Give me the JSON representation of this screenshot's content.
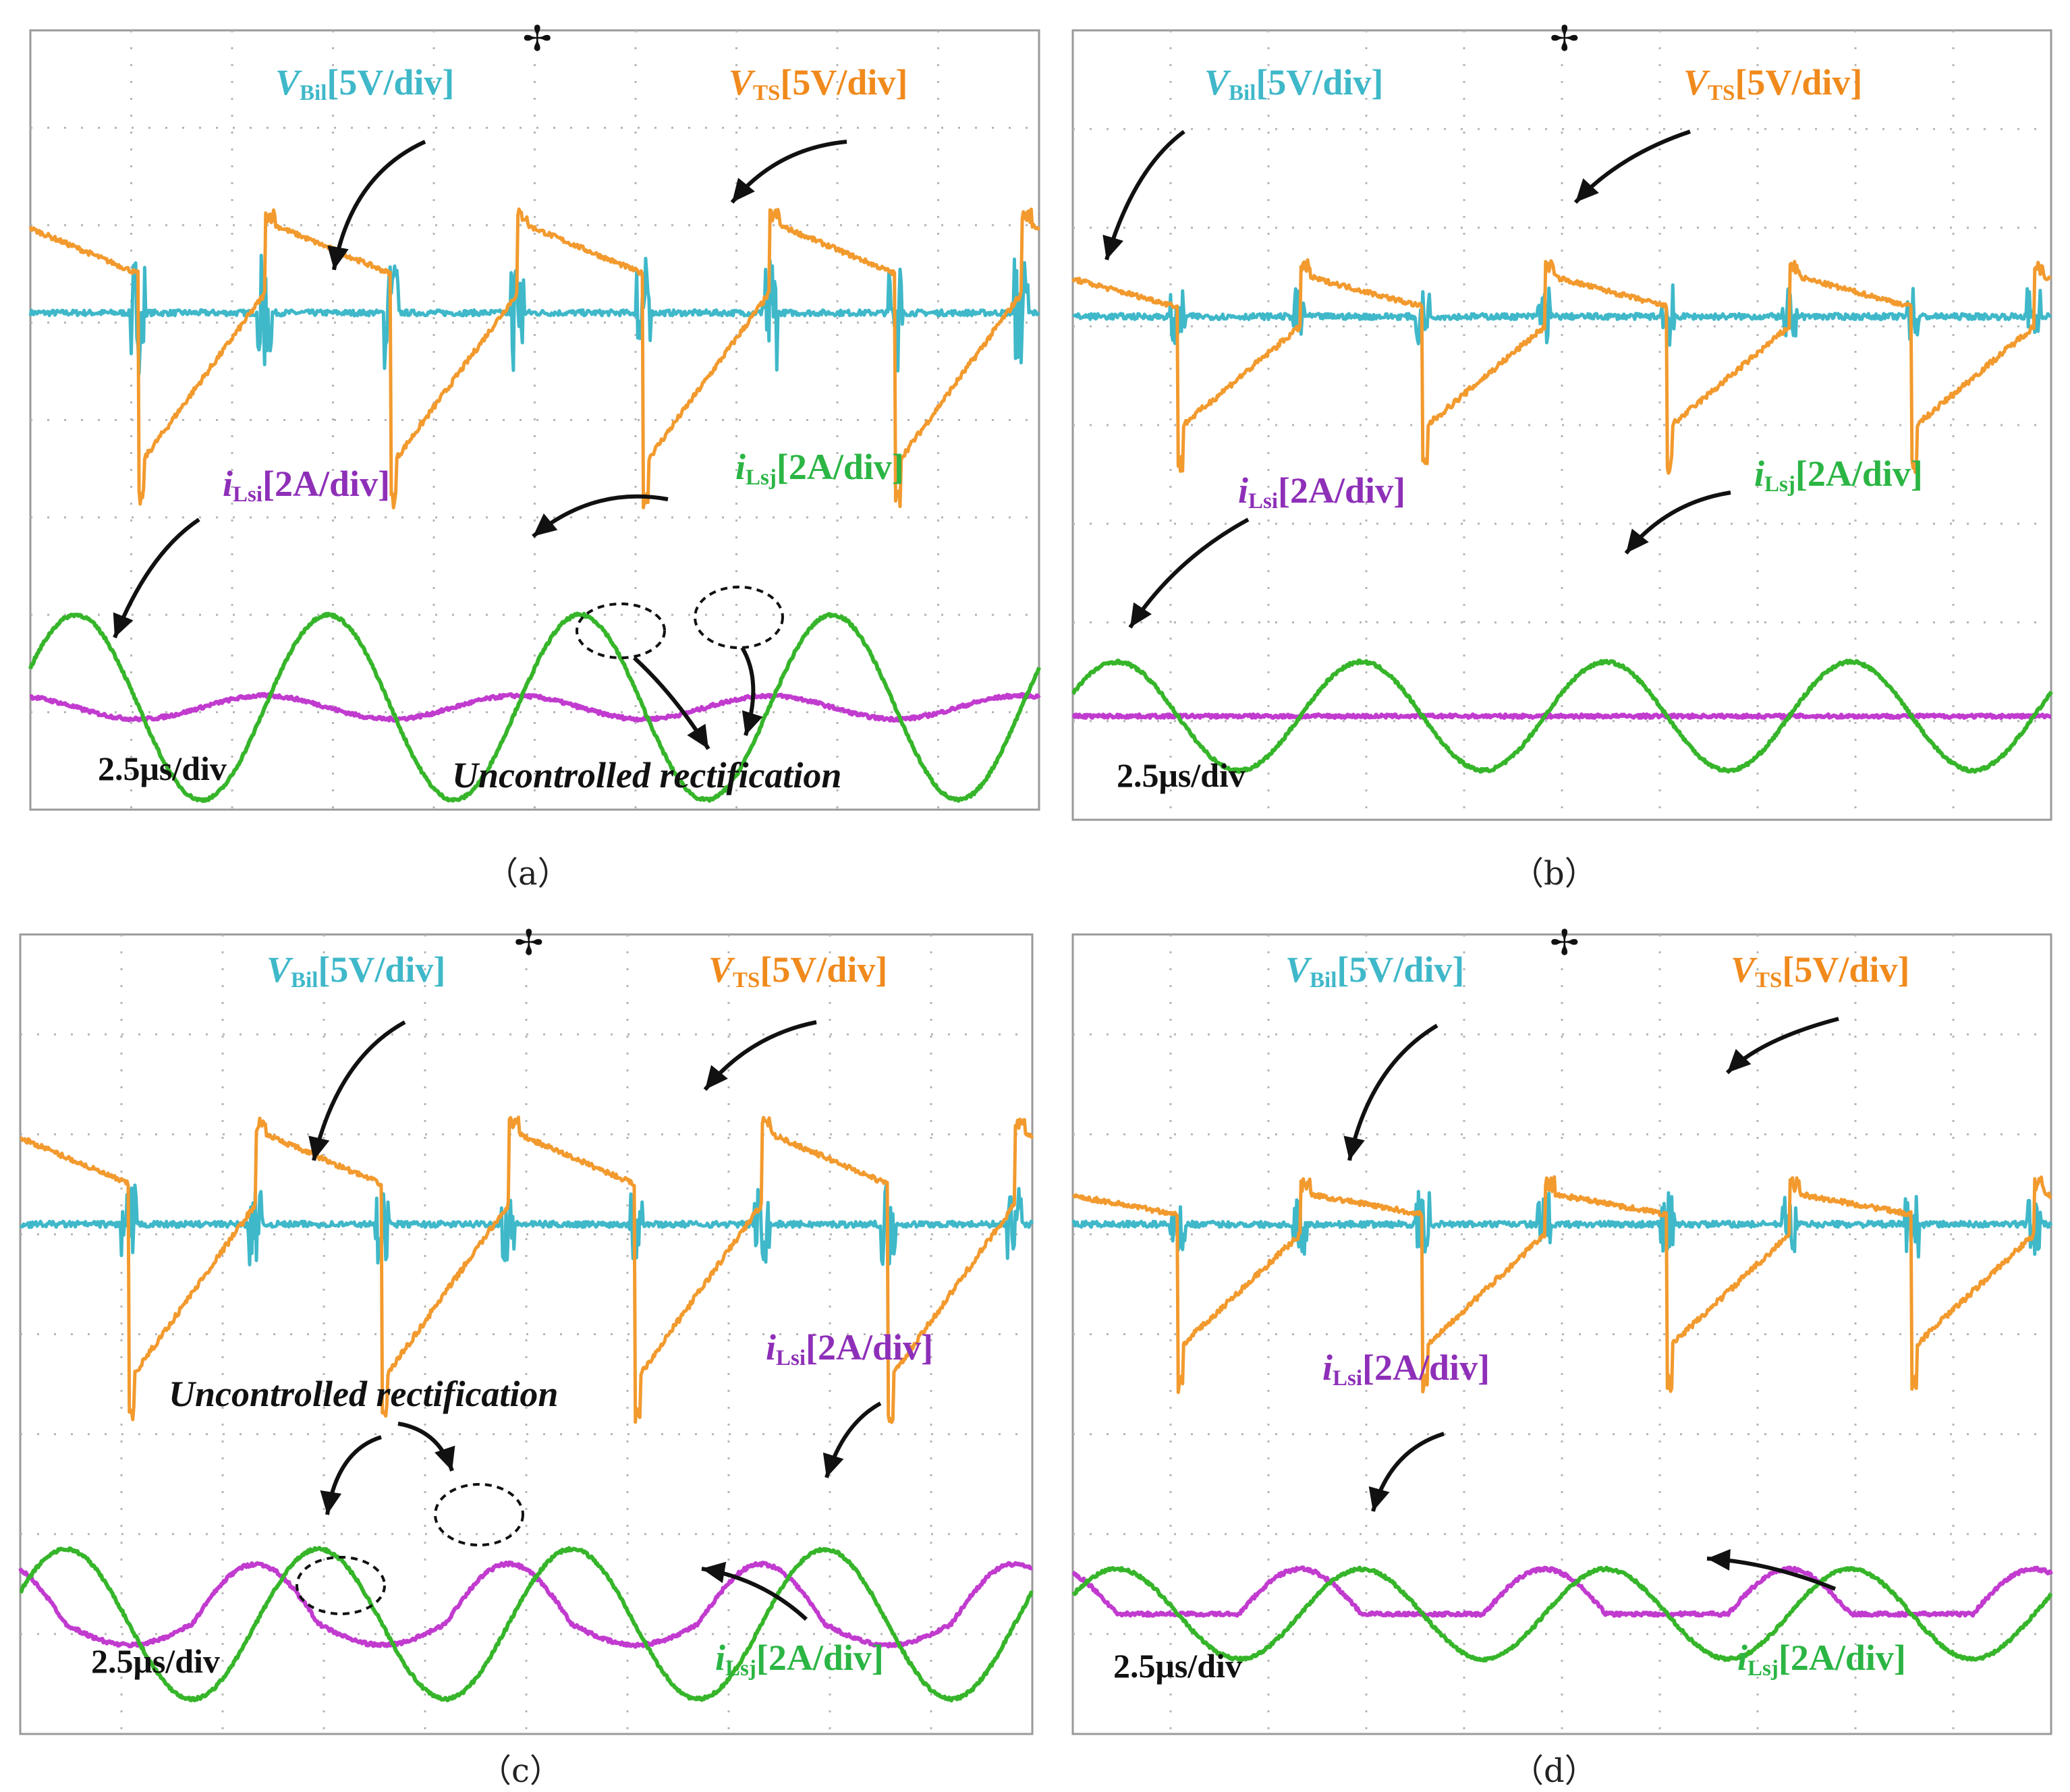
{
  "figure": {
    "panels": [
      {
        "id": "a",
        "caption": "（a）",
        "timebase": "2.5μs/div",
        "annotation": "Uncontrolled rectification",
        "labels": {
          "vbil": {
            "main": "V",
            "sub": "Bil",
            "scale": "[5V/div]"
          },
          "vts": {
            "main": "V",
            "sub": "TS",
            "scale": "[5V/div]"
          },
          "ilsi": {
            "main": "i",
            "sub": "Lsi",
            "scale": "[2A/div]"
          },
          "ilsj": {
            "main": "i",
            "sub": "Lsj",
            "scale": "[2A/div]"
          }
        }
      },
      {
        "id": "b",
        "caption": "（b）",
        "timebase": "2.5μs/div",
        "labels": {
          "vbil": {
            "main": "V",
            "sub": "Bil",
            "scale": "[5V/div]"
          },
          "vts": {
            "main": "V",
            "sub": "TS",
            "scale": "[5V/div]"
          },
          "ilsi": {
            "main": "i",
            "sub": "Lsi",
            "scale": "[2A/div]"
          },
          "ilsj": {
            "main": "i",
            "sub": "Lsj",
            "scale": "[2A/div]"
          }
        }
      },
      {
        "id": "c",
        "caption": "（c）",
        "timebase": "2.5μs/div",
        "annotation": "Uncontrolled rectification",
        "labels": {
          "vbil": {
            "main": "V",
            "sub": "Bil",
            "scale": "[5V/div]"
          },
          "vts": {
            "main": "V",
            "sub": "TS",
            "scale": "[5V/div]"
          },
          "ilsi": {
            "main": "i",
            "sub": "Lsi",
            "scale": "[2A/div]"
          },
          "ilsj": {
            "main": "i",
            "sub": "Lsj",
            "scale": "[2A/div]"
          }
        }
      },
      {
        "id": "d",
        "caption": "（d）",
        "timebase": "2.5μs/div",
        "labels": {
          "vbil": {
            "main": "V",
            "sub": "Bil",
            "scale": "[5V/div]"
          },
          "vts": {
            "main": "V",
            "sub": "TS",
            "scale": "[5V/div]"
          },
          "ilsi": {
            "main": "i",
            "sub": "Lsi",
            "scale": "[2A/div]"
          },
          "ilsj": {
            "main": "i",
            "sub": "Lsj",
            "scale": "[2A/div]"
          }
        }
      }
    ],
    "colors": {
      "vbil": "#3fb8c9",
      "vts": "#f29a2e",
      "ilsi": "#c13bcf",
      "ilsj": "#36b52a",
      "grid": "#b5b5b5"
    }
  },
  "chart_data": [
    {
      "type": "line",
      "panel": "a",
      "title": "",
      "xlabel": "2.5μs/div",
      "x_divisions": 10,
      "y_divisions": 8,
      "grid": true,
      "series": [
        {
          "name": "VBil",
          "unit": "V",
          "scale_per_div": 5,
          "shape": "flat trace with switching ringing",
          "level_div": 5.1,
          "spike_div": 0.6
        },
        {
          "name": "VTS",
          "unit": "V",
          "scale_per_div": 5,
          "shape": "sawtooth",
          "periods": 4,
          "high_div": 6.0,
          "low_div": 3.6,
          "step_high_div": 5.3
        },
        {
          "name": "iLsi",
          "unit": "A",
          "scale_per_div": 2,
          "shape": "small sinusoid (uncontrolled rectification)",
          "periods": 4,
          "amplitude_div": 0.12,
          "baseline_div": 1.05
        },
        {
          "name": "iLsj",
          "unit": "A",
          "scale_per_div": 2,
          "shape": "sinusoid",
          "periods": 4,
          "amplitude_div": 0.95,
          "baseline_div": 1.05
        }
      ]
    },
    {
      "type": "line",
      "panel": "b",
      "title": "",
      "xlabel": "2.5μs/div",
      "x_divisions": 10,
      "y_divisions": 8,
      "grid": true,
      "series": [
        {
          "name": "VBil",
          "unit": "V",
          "scale_per_div": 5,
          "shape": "flat trace with switching ringing",
          "level_div": 5.1,
          "spike_div": 0.3
        },
        {
          "name": "VTS",
          "unit": "V",
          "scale_per_div": 5,
          "shape": "sawtooth",
          "periods": 4,
          "high_div": 5.5,
          "low_div": 4.0,
          "step_high_div": 5.0
        },
        {
          "name": "iLsi",
          "unit": "A",
          "scale_per_div": 2,
          "shape": "near zero",
          "periods": 4,
          "amplitude_div": 0.0,
          "baseline_div": 1.05
        },
        {
          "name": "iLsj",
          "unit": "A",
          "scale_per_div": 2,
          "shape": "sinusoid",
          "periods": 4,
          "amplitude_div": 0.55,
          "baseline_div": 1.05
        }
      ]
    },
    {
      "type": "line",
      "panel": "c",
      "title": "",
      "xlabel": "2.5μs/div",
      "x_divisions": 10,
      "y_divisions": 8,
      "grid": true,
      "series": [
        {
          "name": "VBil",
          "unit": "V",
          "scale_per_div": 5,
          "shape": "flat trace with switching ringing",
          "level_div": 5.1,
          "spike_div": 0.4
        },
        {
          "name": "VTS",
          "unit": "V",
          "scale_per_div": 5,
          "shape": "sawtooth",
          "periods": 4,
          "high_div": 6.0,
          "low_div": 3.6,
          "step_high_div": 5.3
        },
        {
          "name": "iLsi",
          "unit": "A",
          "scale_per_div": 2,
          "shape": "sinusoid (uncontrolled rectification)",
          "periods": 4,
          "amplitude_div": 0.6,
          "baseline_div": 1.1
        },
        {
          "name": "iLsj",
          "unit": "A",
          "scale_per_div": 2,
          "shape": "sinusoid",
          "periods": 4,
          "amplitude_div": 0.75,
          "baseline_div": 1.1
        }
      ]
    },
    {
      "type": "line",
      "panel": "d",
      "title": "",
      "xlabel": "2.5μs/div",
      "x_divisions": 10,
      "y_divisions": 8,
      "grid": true,
      "series": [
        {
          "name": "VBil",
          "unit": "V",
          "scale_per_div": 5,
          "shape": "flat trace with switching ringing",
          "level_div": 5.1,
          "spike_div": 0.3
        },
        {
          "name": "VTS",
          "unit": "V",
          "scale_per_div": 5,
          "shape": "sawtooth",
          "periods": 4,
          "high_div": 5.4,
          "low_div": 3.9,
          "step_high_div": 5.0
        },
        {
          "name": "iLsi",
          "unit": "A",
          "scale_per_div": 2,
          "shape": "sinusoid",
          "periods": 4,
          "amplitude_div": 0.45,
          "baseline_div": 1.2
        },
        {
          "name": "iLsj",
          "unit": "A",
          "scale_per_div": 2,
          "shape": "sinusoid",
          "periods": 4,
          "amplitude_div": 0.45,
          "baseline_div": 1.2
        }
      ]
    }
  ]
}
